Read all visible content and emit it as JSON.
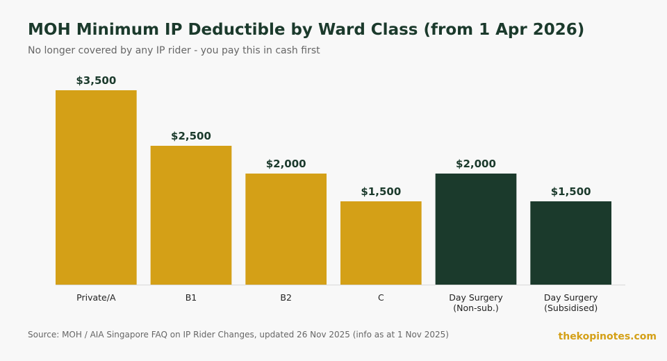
{
  "title": "MOH Minimum IP Deductible by Ward Class (from 1 Apr 2026)",
  "subtitle": "No longer covered by any IP rider - you pay this in cash first",
  "source": "Source: MOH / AIA Singapore FAQ on IP Rider Changes, updated 26 Nov 2025 (info as at 1 Nov 2025)",
  "brand": "thekopinotes.com",
  "colors": {
    "ward": "#d4a017",
    "day_surgery": "#1b3a2c",
    "baseline": "#d9d9d9"
  },
  "chart_data": {
    "type": "bar",
    "categories": [
      [
        "Private/A"
      ],
      [
        "B1"
      ],
      [
        "B2"
      ],
      [
        "C"
      ],
      [
        "Day Surgery",
        "(Non-sub.)"
      ],
      [
        "Day Surgery",
        "(Subsidised)"
      ]
    ],
    "values": [
      3500,
      2500,
      2000,
      1500,
      2000,
      1500
    ],
    "value_labels": [
      "$3,500",
      "$2,500",
      "$2,000",
      "$1,500",
      "$2,000",
      "$1,500"
    ],
    "bar_groups": [
      "ward",
      "ward",
      "ward",
      "ward",
      "day_surgery",
      "day_surgery"
    ],
    "ylim": [
      0,
      3500
    ],
    "grid": false,
    "legend": "none"
  }
}
